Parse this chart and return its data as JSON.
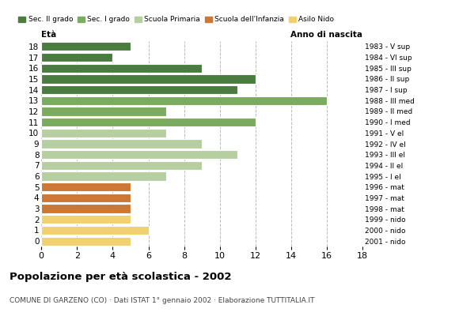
{
  "ages": [
    18,
    17,
    16,
    15,
    14,
    13,
    12,
    11,
    10,
    9,
    8,
    7,
    6,
    5,
    4,
    3,
    2,
    1,
    0
  ],
  "values": [
    5,
    4,
    9,
    12,
    11,
    16,
    7,
    12,
    7,
    9,
    11,
    9,
    7,
    5,
    5,
    5,
    5,
    6,
    5
  ],
  "colors": [
    "#4a7c3f",
    "#4a7c3f",
    "#4a7c3f",
    "#4a7c3f",
    "#4a7c3f",
    "#7aab5e",
    "#7aab5e",
    "#7aab5e",
    "#b5cfa0",
    "#b5cfa0",
    "#b5cfa0",
    "#b5cfa0",
    "#b5cfa0",
    "#cc7733",
    "#cc7733",
    "#cc7733",
    "#f0d070",
    "#f0d070",
    "#f0d070"
  ],
  "anno_nascita": [
    "1983 - V sup",
    "1984 - VI sup",
    "1985 - III sup",
    "1986 - II sup",
    "1987 - I sup",
    "1988 - III med",
    "1989 - II med",
    "1990 - I med",
    "1991 - V el",
    "1992 - IV el",
    "1993 - III el",
    "1994 - II el",
    "1995 - I el",
    "1996 - mat",
    "1997 - mat",
    "1998 - mat",
    "1999 - nido",
    "2000 - nido",
    "2001 - nido"
  ],
  "legend_labels": [
    "Sec. II grado",
    "Sec. I grado",
    "Scuola Primaria",
    "Scuola dell'Infanzia",
    "Asilo Nido"
  ],
  "legend_colors": [
    "#4a7c3f",
    "#7aab5e",
    "#b5cfa0",
    "#cc7733",
    "#f0d070"
  ],
  "title": "Popolazione per età scolastica - 2002",
  "subtitle": "COMUNE DI GARZENO (CO) · Dati ISTAT 1° gennaio 2002 · Elaborazione TUTTITALIA.IT",
  "xlabel_eta": "Età",
  "xlabel_anno": "Anno di nascita",
  "xlim": [
    0,
    18
  ],
  "xticks": [
    0,
    2,
    4,
    6,
    8,
    10,
    12,
    14,
    16,
    18
  ],
  "background_color": "#ffffff",
  "grid_color": "#bbbbbb"
}
